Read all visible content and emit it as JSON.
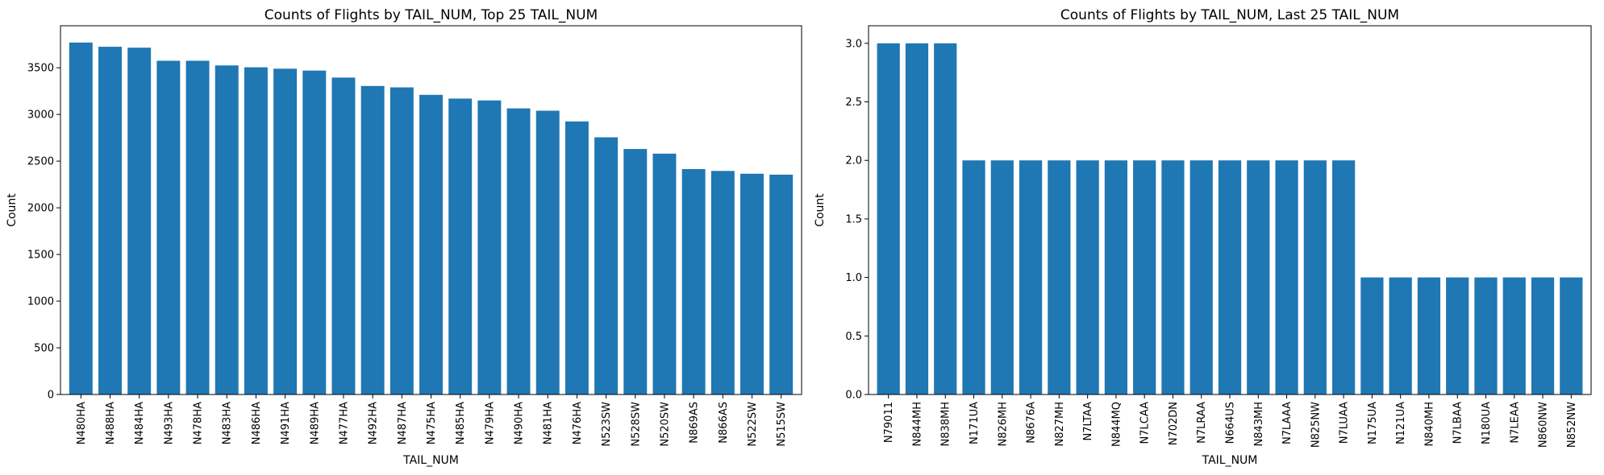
{
  "chart_data": [
    {
      "type": "bar",
      "title": "Counts of Flights by TAIL_NUM, Top 25 TAIL_NUM",
      "xlabel": "TAIL_NUM",
      "ylabel": "Count",
      "ylim": [
        0,
        3950
      ],
      "yticks": [
        0,
        500,
        1000,
        1500,
        2000,
        2500,
        3000,
        3500
      ],
      "ytick_labels": [
        "0",
        "500",
        "1000",
        "1500",
        "2000",
        "2500",
        "3000",
        "3500"
      ],
      "color": "#1f77b4",
      "grid": false,
      "categories": [
        "N480HA",
        "N488HA",
        "N484HA",
        "N493HA",
        "N478HA",
        "N483HA",
        "N486HA",
        "N491HA",
        "N489HA",
        "N477HA",
        "N492HA",
        "N487HA",
        "N475HA",
        "N485HA",
        "N479HA",
        "N490HA",
        "N481HA",
        "N476HA",
        "N523SW",
        "N528SW",
        "N520SW",
        "N869AS",
        "N866AS",
        "N522SW",
        "N515SW"
      ],
      "values": [
        3770,
        3725,
        3715,
        3575,
        3575,
        3525,
        3505,
        3490,
        3470,
        3395,
        3305,
        3290,
        3210,
        3170,
        3150,
        3065,
        3040,
        2925,
        2755,
        2630,
        2580,
        2415,
        2395,
        2365,
        2355
      ]
    },
    {
      "type": "bar",
      "title": "Counts of Flights by TAIL_NUM, Last 25 TAIL_NUM",
      "xlabel": "TAIL_NUM",
      "ylabel": "Count",
      "ylim": [
        0,
        3.15
      ],
      "yticks": [
        0,
        0.5,
        1,
        1.5,
        2,
        2.5,
        3
      ],
      "ytick_labels": [
        "0.0",
        "0.5",
        "1.0",
        "1.5",
        "2.0",
        "2.5",
        "3.0"
      ],
      "color": "#1f77b4",
      "grid": false,
      "categories": [
        "N79011",
        "N844MH",
        "N838MH",
        "N171UA",
        "N826MH",
        "N8676A",
        "N827MH",
        "N7LTAA",
        "N844MQ",
        "N7LCAA",
        "N702DN",
        "N7LRAA",
        "N664US",
        "N843MH",
        "N7LAAA",
        "N825NW",
        "N7LUAA",
        "N175UA",
        "N121UA",
        "N840MH",
        "N7LBAA",
        "N180UA",
        "N7LEAA",
        "N860NW",
        "N852NW"
      ],
      "values": [
        3,
        3,
        3,
        2,
        2,
        2,
        2,
        2,
        2,
        2,
        2,
        2,
        2,
        2,
        2,
        2,
        2,
        1,
        1,
        1,
        1,
        1,
        1,
        1,
        1
      ]
    }
  ]
}
